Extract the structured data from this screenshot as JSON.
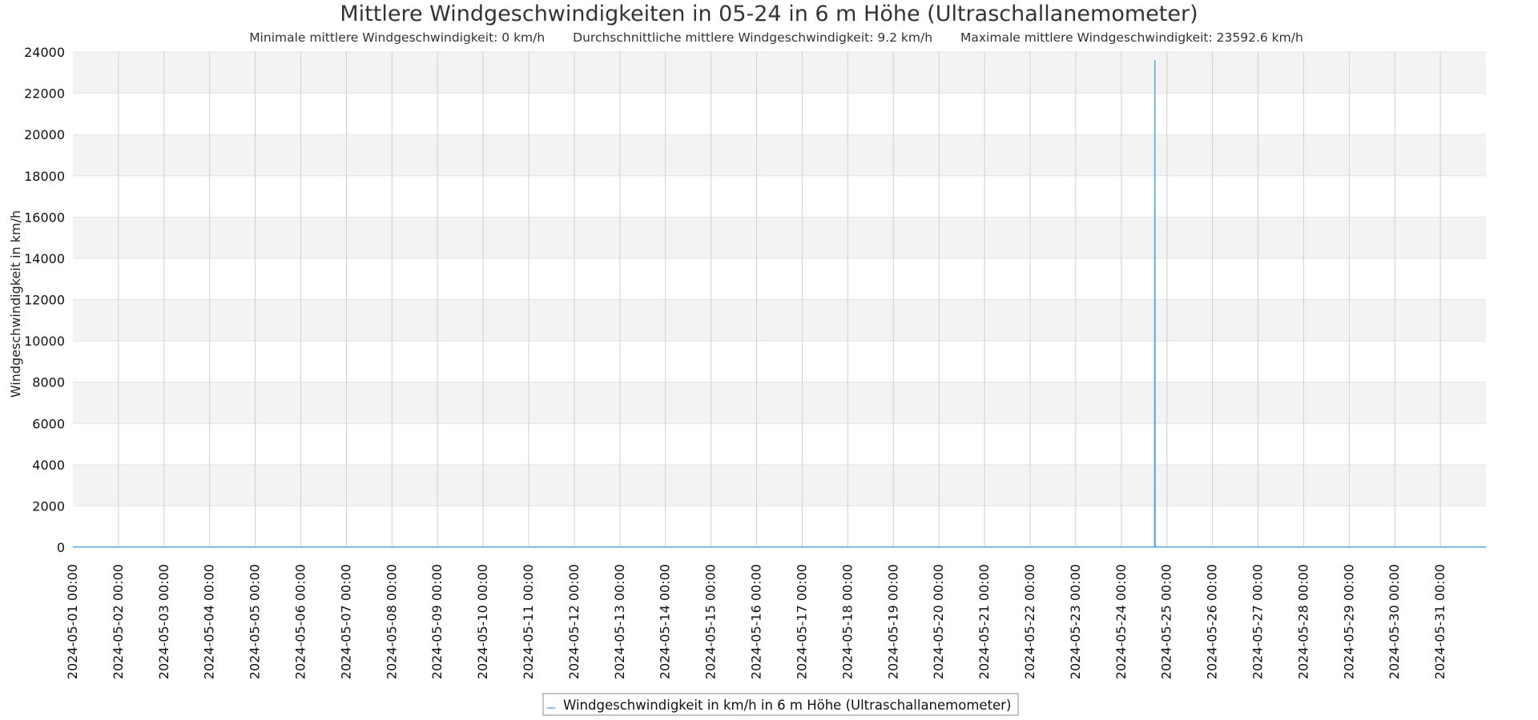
{
  "chart_data": {
    "type": "line",
    "title": "Mittlere Windgeschwindigkeiten in 05-24 in 6 m Höhe (Ultraschallanemometer)",
    "subtitle_parts": [
      "Minimale mittlere Windgeschwindigkeit: 0 km/h",
      "Durchschnittliche mittlere Windgeschwindigkeit: 9.2 km/h",
      "Maximale mittlere Windgeschwindigkeit: 23592.6 km/h"
    ],
    "xlabel": "",
    "ylabel": "Windgeschwindigkeit in km/h",
    "xlim": [
      "2024-05-01 00:00",
      "2024-06-01 00:00"
    ],
    "ylim": [
      0,
      24000
    ],
    "y_ticks": [
      0,
      2000,
      4000,
      6000,
      8000,
      10000,
      12000,
      14000,
      16000,
      18000,
      20000,
      22000,
      24000
    ],
    "x_tick_labels": [
      "2024-05-01 00:00",
      "2024-05-02 00:00",
      "2024-05-03 00:00",
      "2024-05-04 00:00",
      "2024-05-05 00:00",
      "2024-05-06 00:00",
      "2024-05-07 00:00",
      "2024-05-08 00:00",
      "2024-05-09 00:00",
      "2024-05-10 00:00",
      "2024-05-11 00:00",
      "2024-05-12 00:00",
      "2024-05-13 00:00",
      "2024-05-14 00:00",
      "2024-05-15 00:00",
      "2024-05-16 00:00",
      "2024-05-17 00:00",
      "2024-05-18 00:00",
      "2024-05-19 00:00",
      "2024-05-20 00:00",
      "2024-05-21 00:00",
      "2024-05-22 00:00",
      "2024-05-23 00:00",
      "2024-05-24 00:00",
      "2024-05-25 00:00",
      "2024-05-26 00:00",
      "2024-05-27 00:00",
      "2024-05-28 00:00",
      "2024-05-29 00:00",
      "2024-05-30 00:00",
      "2024-05-31 00:00"
    ],
    "grid": true,
    "alternating_bands": true,
    "legend_position": "bottom-center",
    "series": [
      {
        "name": "Windgeschwindigkeit in km/h in 6 m Höhe (Ultraschallanemometer)",
        "color": "#5aa7e8",
        "points": [
          [
            "2024-05-01 00:00",
            9
          ],
          [
            "2024-05-24 17:30",
            9
          ],
          [
            "2024-05-24 17:40",
            23592.6
          ],
          [
            "2024-05-24 17:50",
            9
          ],
          [
            "2024-06-01 00:00",
            9
          ]
        ]
      }
    ]
  }
}
